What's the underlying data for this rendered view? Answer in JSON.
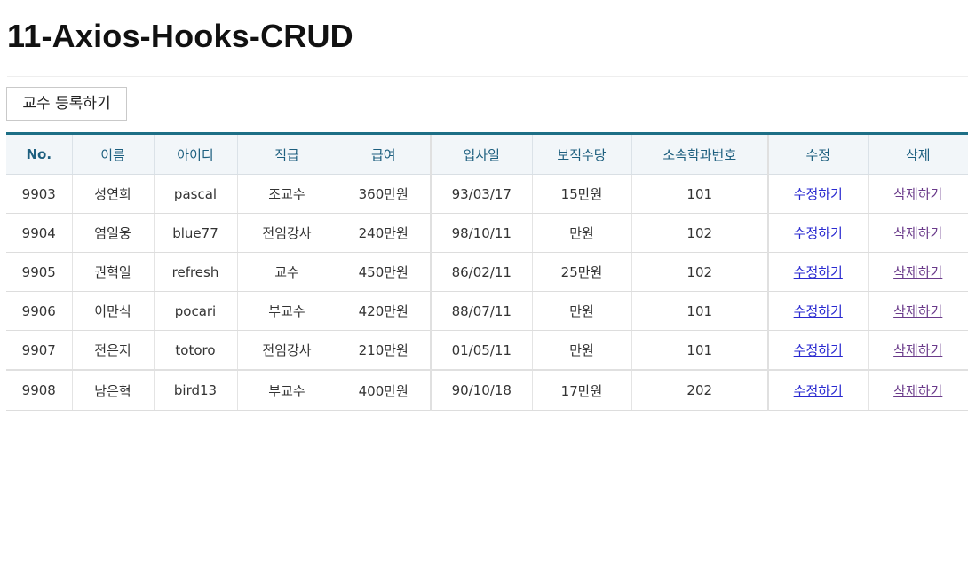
{
  "header": {
    "title": "11-Axios-Hooks-CRUD"
  },
  "toolbar": {
    "add_label": "교수 등록하기"
  },
  "table": {
    "columns": [
      "No.",
      "이름",
      "아이디",
      "직급",
      "급여",
      "입사일",
      "보직수당",
      "소속학과번호",
      "수정",
      "삭제"
    ],
    "rows": [
      [
        "9903",
        "성연희",
        "pascal",
        "조교수",
        "360만원",
        "93/03/17",
        "15만원",
        "101",
        "수정하기",
        "삭제하기"
      ],
      [
        "9904",
        "염일웅",
        "blue77",
        "전임강사",
        "240만원",
        "98/10/11",
        "만원",
        "102",
        "수정하기",
        "삭제하기"
      ],
      [
        "9905",
        "권혁일",
        "refresh",
        "교수",
        "450만원",
        "86/02/11",
        "25만원",
        "102",
        "수정하기",
        "삭제하기"
      ],
      [
        "9906",
        "이만식",
        "pocari",
        "부교수",
        "420만원",
        "88/07/11",
        "만원",
        "101",
        "수정하기",
        "삭제하기"
      ],
      [
        "9907",
        "전은지",
        "totoro",
        "전임강사",
        "210만원",
        "01/05/11",
        "만원",
        "101",
        "수정하기",
        "삭제하기"
      ],
      [
        "9908",
        "남은혁",
        "bird13",
        "부교수",
        "400만원",
        "90/10/18",
        "17만원",
        "202",
        "수정하기",
        "삭제하기"
      ]
    ]
  },
  "colors": {
    "header_text": "#1d5f7f",
    "header_border": "#1d6f86",
    "header_bg": "#f2f6f9",
    "edit_link": "#2a2ad0",
    "delete_link": "#6a3a8a"
  }
}
